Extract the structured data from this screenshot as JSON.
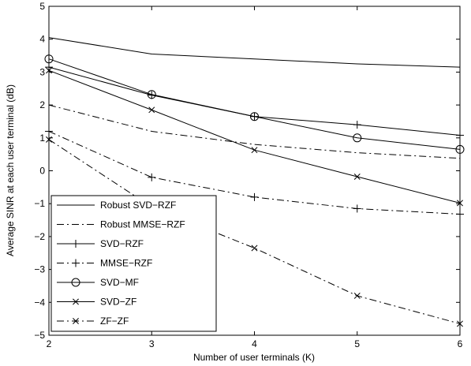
{
  "chart_data": {
    "type": "line",
    "xlabel": "Number of user terminals (K)",
    "ylabel": "Average SINR at each user terminal (dB)",
    "xlim": [
      2,
      6
    ],
    "ylim": [
      -5,
      5
    ],
    "xticks": [
      2,
      3,
      4,
      5,
      6
    ],
    "yticks": [
      -5,
      -4,
      -3,
      -2,
      -1,
      0,
      1,
      2,
      3,
      4,
      5
    ],
    "grid": false,
    "legend_position": "bottom-left",
    "x": [
      2,
      3,
      4,
      5,
      6
    ],
    "series": [
      {
        "name": "Robust SVD−RZF",
        "values": [
          4.05,
          3.55,
          3.4,
          3.25,
          3.15
        ],
        "line": "solid",
        "marker": "none",
        "color": "#000000"
      },
      {
        "name": "Robust MMSE−RZF",
        "values": [
          2.0,
          1.2,
          0.8,
          0.55,
          0.38
        ],
        "line": "dashdot",
        "marker": "none",
        "color": "#000000"
      },
      {
        "name": "SVD−RZF",
        "values": [
          3.15,
          2.3,
          1.65,
          1.4,
          1.08
        ],
        "line": "solid",
        "marker": "plus",
        "color": "#000000"
      },
      {
        "name": "MMSE−RZF",
        "values": [
          1.2,
          -0.2,
          -0.8,
          -1.15,
          -1.32
        ],
        "line": "dashdot",
        "marker": "plus",
        "color": "#000000"
      },
      {
        "name": "SVD−MF",
        "values": [
          3.4,
          2.32,
          1.65,
          1.0,
          0.65
        ],
        "line": "solid",
        "marker": "circle",
        "color": "#000000"
      },
      {
        "name": "SVD−ZF",
        "values": [
          3.05,
          1.85,
          0.63,
          -0.18,
          -0.98
        ],
        "line": "solid",
        "marker": "x",
        "color": "#000000"
      },
      {
        "name": "ZF−ZF",
        "values": [
          0.95,
          -1.1,
          -2.35,
          -3.8,
          -4.65
        ],
        "line": "dashdot",
        "marker": "x",
        "color": "#000000"
      }
    ]
  }
}
